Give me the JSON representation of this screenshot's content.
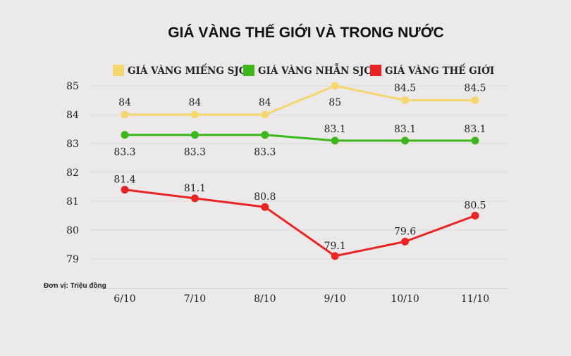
{
  "chart_data": {
    "type": "line",
    "title": "GIÁ VÀNG THẾ GIỚI VÀ TRONG NƯỚC",
    "unit_note": "Đơn vị: Triệu đồng",
    "categories": [
      "6/10",
      "7/10",
      "8/10",
      "9/10",
      "10/10",
      "11/10"
    ],
    "y_ticks": [
      "79",
      "80",
      "81",
      "82",
      "83",
      "84",
      "85"
    ],
    "ylim": [
      79,
      85
    ],
    "grid": true,
    "legend_position": "top",
    "series": [
      {
        "name": "GIÁ VÀNG MIẾNG SJC",
        "color": "#f5d76e",
        "values": [
          84,
          84,
          84,
          85,
          84.5,
          84.5
        ],
        "labels": [
          "84",
          "84",
          "84",
          "85",
          "84.5",
          "84.5"
        ]
      },
      {
        "name": "GIÁ VÀNG NHẪN SJC",
        "color": "#3cb81a",
        "values": [
          83.3,
          83.3,
          83.3,
          83.1,
          83.1,
          83.1
        ],
        "labels": [
          "83.3",
          "83.3",
          "83.3",
          "83.1",
          "83.1",
          "83.1"
        ]
      },
      {
        "name": "GIÁ VÀNG THẾ GIỚI",
        "color": "#ec2323",
        "values": [
          81.4,
          81.1,
          80.8,
          79.1,
          79.6,
          80.5
        ],
        "labels": [
          "81.4",
          "81.1",
          "80.8",
          "79.1",
          "79.6",
          "80.5"
        ]
      }
    ]
  }
}
